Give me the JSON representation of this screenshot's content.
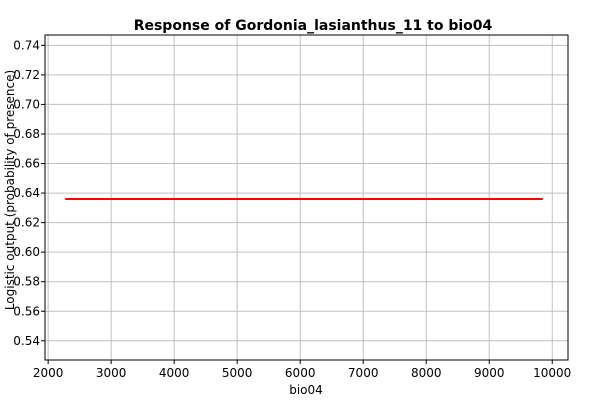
{
  "chart_data": {
    "type": "line",
    "title": "Response of Gordonia_lasianthus_11 to bio04",
    "xlabel": "bio04",
    "ylabel": "Logistic output (probability of presence)",
    "xlim": [
      1950,
      10250
    ],
    "ylim": [
      0.527,
      0.747
    ],
    "x_ticks": [
      2000,
      3000,
      4000,
      5000,
      6000,
      7000,
      8000,
      9000,
      10000
    ],
    "x_tick_labels": [
      "2000",
      "3000",
      "4000",
      "5000",
      "6000",
      "7000",
      "8000",
      "9000",
      "10000"
    ],
    "y_ticks": [
      0.54,
      0.56,
      0.58,
      0.6,
      0.62,
      0.64,
      0.66,
      0.68,
      0.7,
      0.72,
      0.74
    ],
    "y_tick_labels": [
      "0.54",
      "0.56",
      "0.58",
      "0.60",
      "0.62",
      "0.64",
      "0.66",
      "0.68",
      "0.70",
      "0.72",
      "0.74"
    ],
    "grid": true,
    "series": [
      {
        "color": "#ff0000",
        "x": [
          2270,
          9850
        ],
        "y": [
          0.636,
          0.636
        ]
      }
    ]
  }
}
